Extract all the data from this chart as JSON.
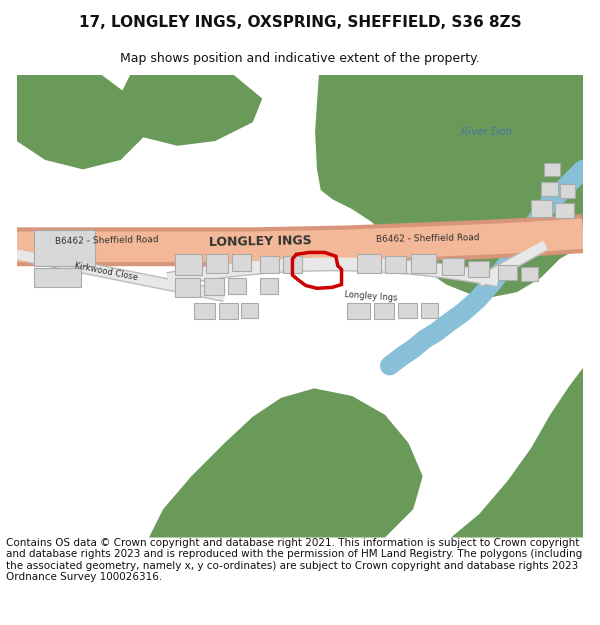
{
  "title": "17, LONGLEY INGS, OXSPRING, SHEFFIELD, S36 8ZS",
  "subtitle": "Map shows position and indicative extent of the property.",
  "footer": "Contains OS data © Crown copyright and database right 2021. This information is subject to Crown copyright and database rights 2023 and is reproduced with the permission of HM Land Registry. The polygons (including the associated geometry, namely x, y co-ordinates) are subject to Crown copyright and database rights 2023 Ordnance Survey 100026316.",
  "title_fontsize": 11,
  "subtitle_fontsize": 9,
  "footer_fontsize": 7.5,
  "bg_color": "#ffffff",
  "map_bg": "#f0f0ee",
  "green_color": "#6a9a5a",
  "road_color": "#f2b898",
  "road_outline": "#d8957a",
  "building_color": "#d8d8d8",
  "building_edge": "#aaaaaa",
  "river_color": "#88c0d8",
  "red_outline": "#cc0000",
  "road_label_color": "#333333",
  "water_label_color": "#4477aa"
}
